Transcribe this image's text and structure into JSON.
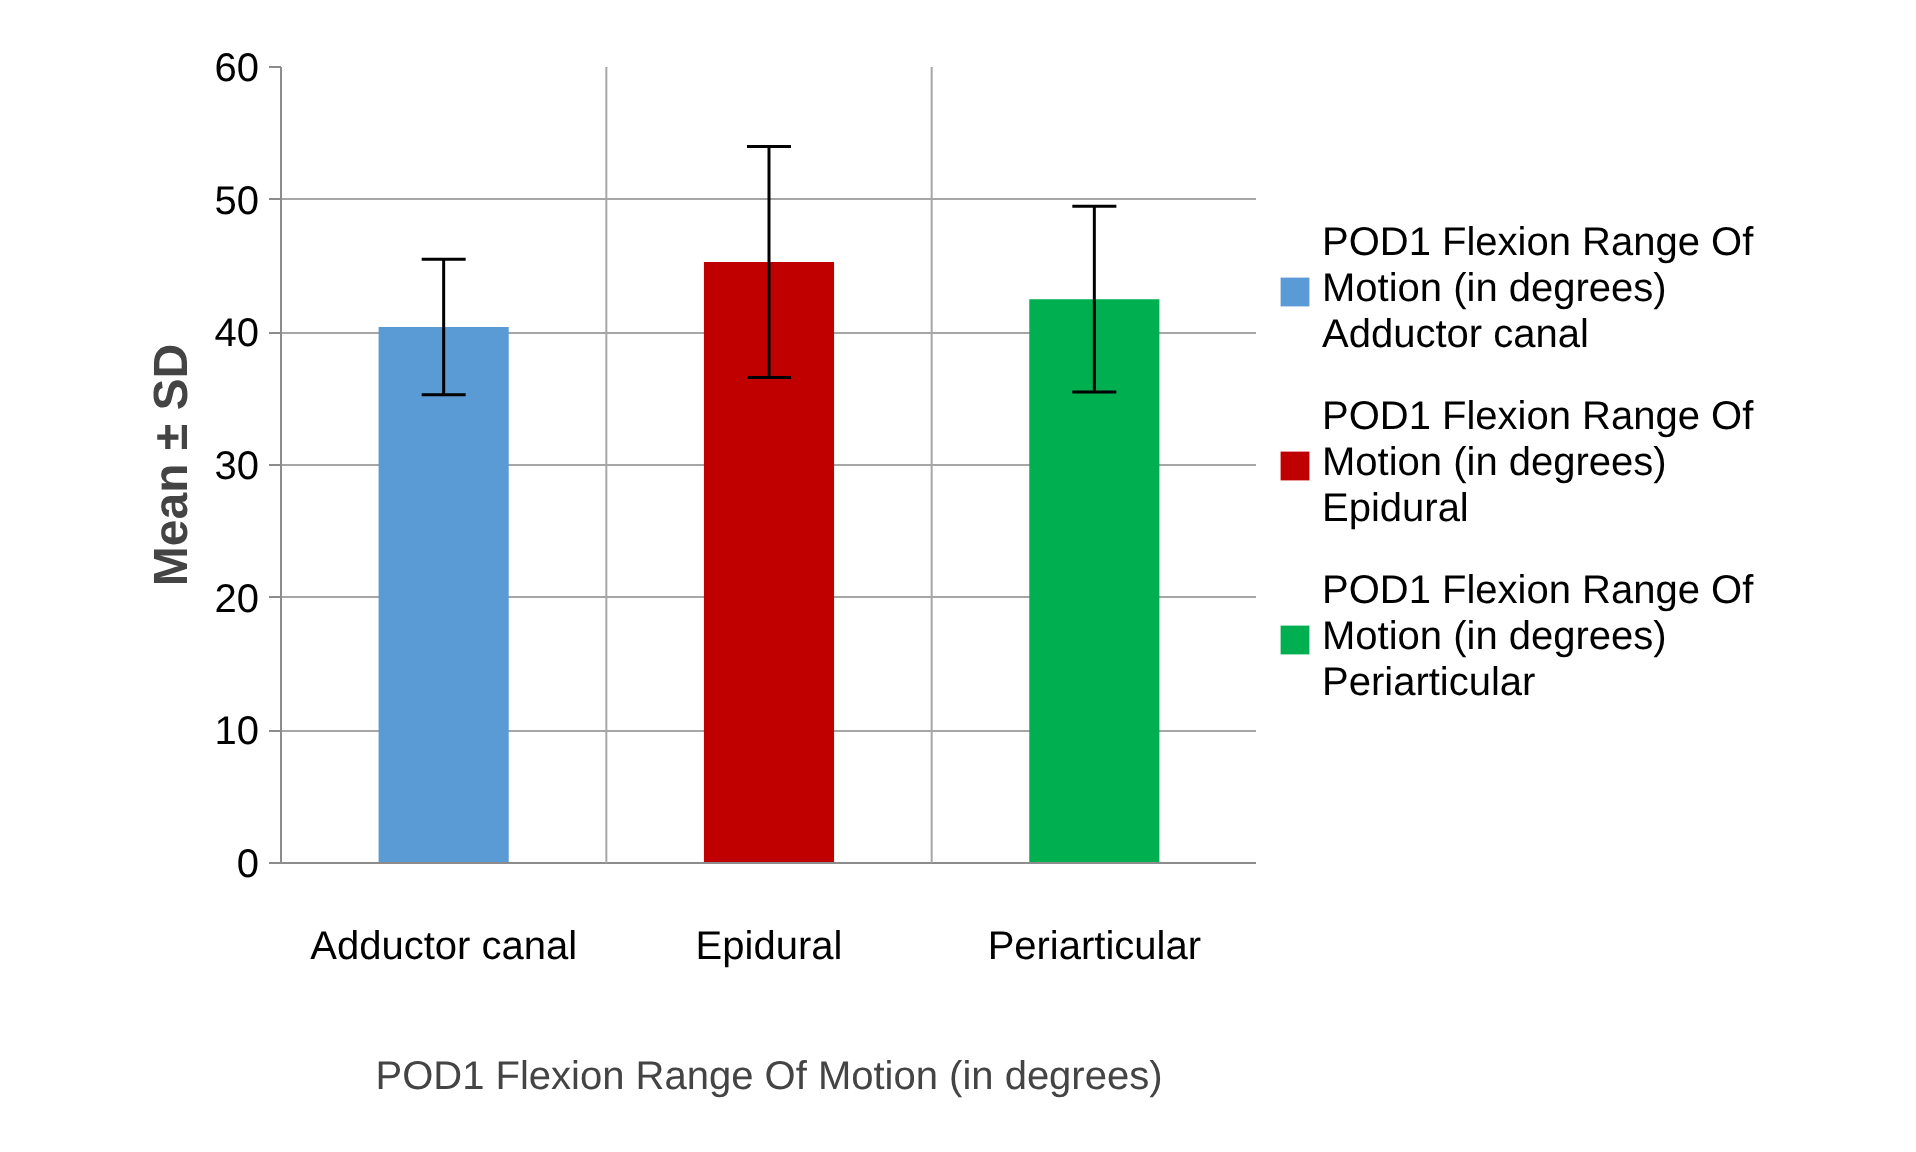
{
  "chart_data": {
    "type": "bar",
    "ylabel": "Mean ± SD",
    "xlabel": "POD1 Flexion Range Of Motion (in degrees)",
    "categories": [
      "Adductor canal",
      "Epidural",
      "Periarticular"
    ],
    "series": [
      {
        "name": "POD1 Flexion Range Of Motion (in degrees) Adductor canal",
        "color": "#5b9bd5",
        "values": [
          40.4,
          null,
          null
        ],
        "errors": [
          5.1,
          null,
          null
        ]
      },
      {
        "name": "POD1 Flexion Range Of Motion (in degrees) Epidural",
        "color": "#c00000",
        "values": [
          null,
          45.3,
          null
        ],
        "errors": [
          null,
          8.7,
          null
        ]
      },
      {
        "name": "POD1 Flexion Range Of Motion (in degrees) Periarticular",
        "color": "#00b050",
        "values": [
          null,
          null,
          42.5
        ],
        "errors": [
          null,
          null,
          7.0
        ]
      }
    ],
    "ylim": [
      0,
      60
    ],
    "yticks": [
      0,
      10,
      20,
      30,
      40,
      50,
      60
    ],
    "grid": "y",
    "legend": "right"
  }
}
